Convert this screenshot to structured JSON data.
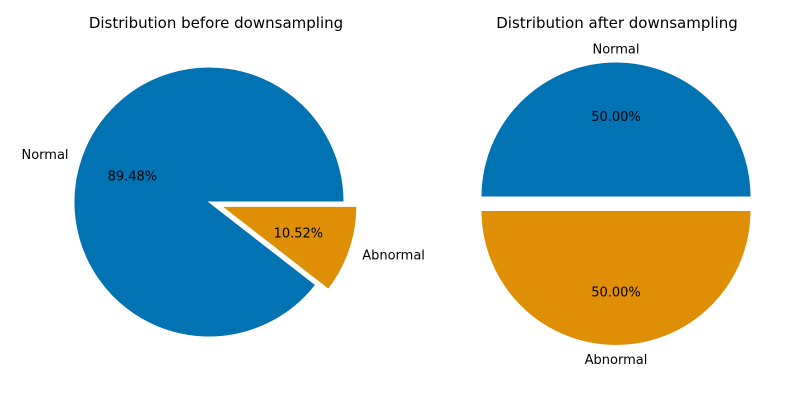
{
  "chart_data": [
    {
      "type": "pie",
      "title": "Distribution before downsampling",
      "labels": [
        "Normal",
        "Abnormal"
      ],
      "values": [
        89.48,
        10.52
      ],
      "percent_labels": [
        "89.48%",
        "10.52%"
      ],
      "colors": [
        "#0173b2",
        "#de8f05"
      ],
      "explode": [
        0,
        0.1
      ],
      "start_angle_deg": 0
    },
    {
      "type": "pie",
      "title": "Distribution after downsampling",
      "labels": [
        "Normal",
        "Abnormal"
      ],
      "values": [
        50.0,
        50.0
      ],
      "percent_labels": [
        "50.00%",
        "50.00%"
      ],
      "colors": [
        "#0173b2",
        "#de8f05"
      ],
      "explode": [
        0,
        0.1
      ],
      "start_angle_deg": 0
    }
  ]
}
